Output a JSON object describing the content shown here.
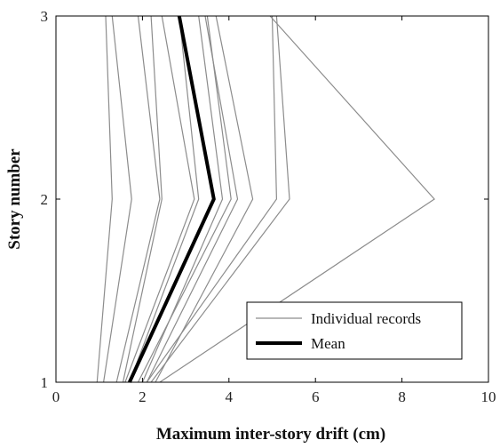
{
  "chart_data": {
    "type": "line",
    "title": "",
    "xlabel": "Maximum inter-story drift (cm)",
    "ylabel": "Story number",
    "xlim": [
      0,
      10
    ],
    "ylim": [
      1,
      3
    ],
    "xticks": [
      0,
      2,
      4,
      6,
      8,
      10
    ],
    "yticks": [
      1,
      2,
      3
    ],
    "x_tick_labels": [
      "0",
      "2",
      "4",
      "6",
      "8",
      "10"
    ],
    "y_tick_labels": [
      "1",
      "2",
      "3"
    ],
    "y": [
      1,
      2,
      3
    ],
    "grid": false,
    "legend_position": "bottom-right",
    "colors": {
      "individual": "#8c8c8c",
      "mean": "#000000"
    },
    "series": [
      {
        "group": "individual",
        "x": [
          0.95,
          1.3,
          1.15
        ]
      },
      {
        "group": "individual",
        "x": [
          1.1,
          1.75,
          1.3
        ]
      },
      {
        "group": "individual",
        "x": [
          1.4,
          2.4,
          1.9
        ]
      },
      {
        "group": "individual",
        "x": [
          1.55,
          2.45,
          2.2
        ]
      },
      {
        "group": "individual",
        "x": [
          1.6,
          3.2,
          2.45
        ]
      },
      {
        "group": "individual",
        "x": [
          1.7,
          3.3,
          2.85
        ]
      },
      {
        "group": "individual",
        "x": [
          2.0,
          3.85,
          3.3
        ]
      },
      {
        "group": "individual",
        "x": [
          1.9,
          4.05,
          3.5
        ]
      },
      {
        "group": "individual",
        "x": [
          2.1,
          4.2,
          3.45
        ]
      },
      {
        "group": "individual",
        "x": [
          2.3,
          4.55,
          3.7
        ]
      },
      {
        "group": "individual",
        "x": [
          2.1,
          5.1,
          5.0
        ]
      },
      {
        "group": "individual",
        "x": [
          2.2,
          5.4,
          5.1
        ]
      },
      {
        "group": "individual",
        "x": [
          2.4,
          8.75,
          4.95
        ]
      },
      {
        "group": "mean",
        "name": "Mean",
        "x": [
          1.7,
          3.65,
          2.85
        ]
      }
    ],
    "legend": [
      {
        "label": "Individual records",
        "group": "individual"
      },
      {
        "label": "Mean",
        "group": "mean"
      }
    ]
  }
}
